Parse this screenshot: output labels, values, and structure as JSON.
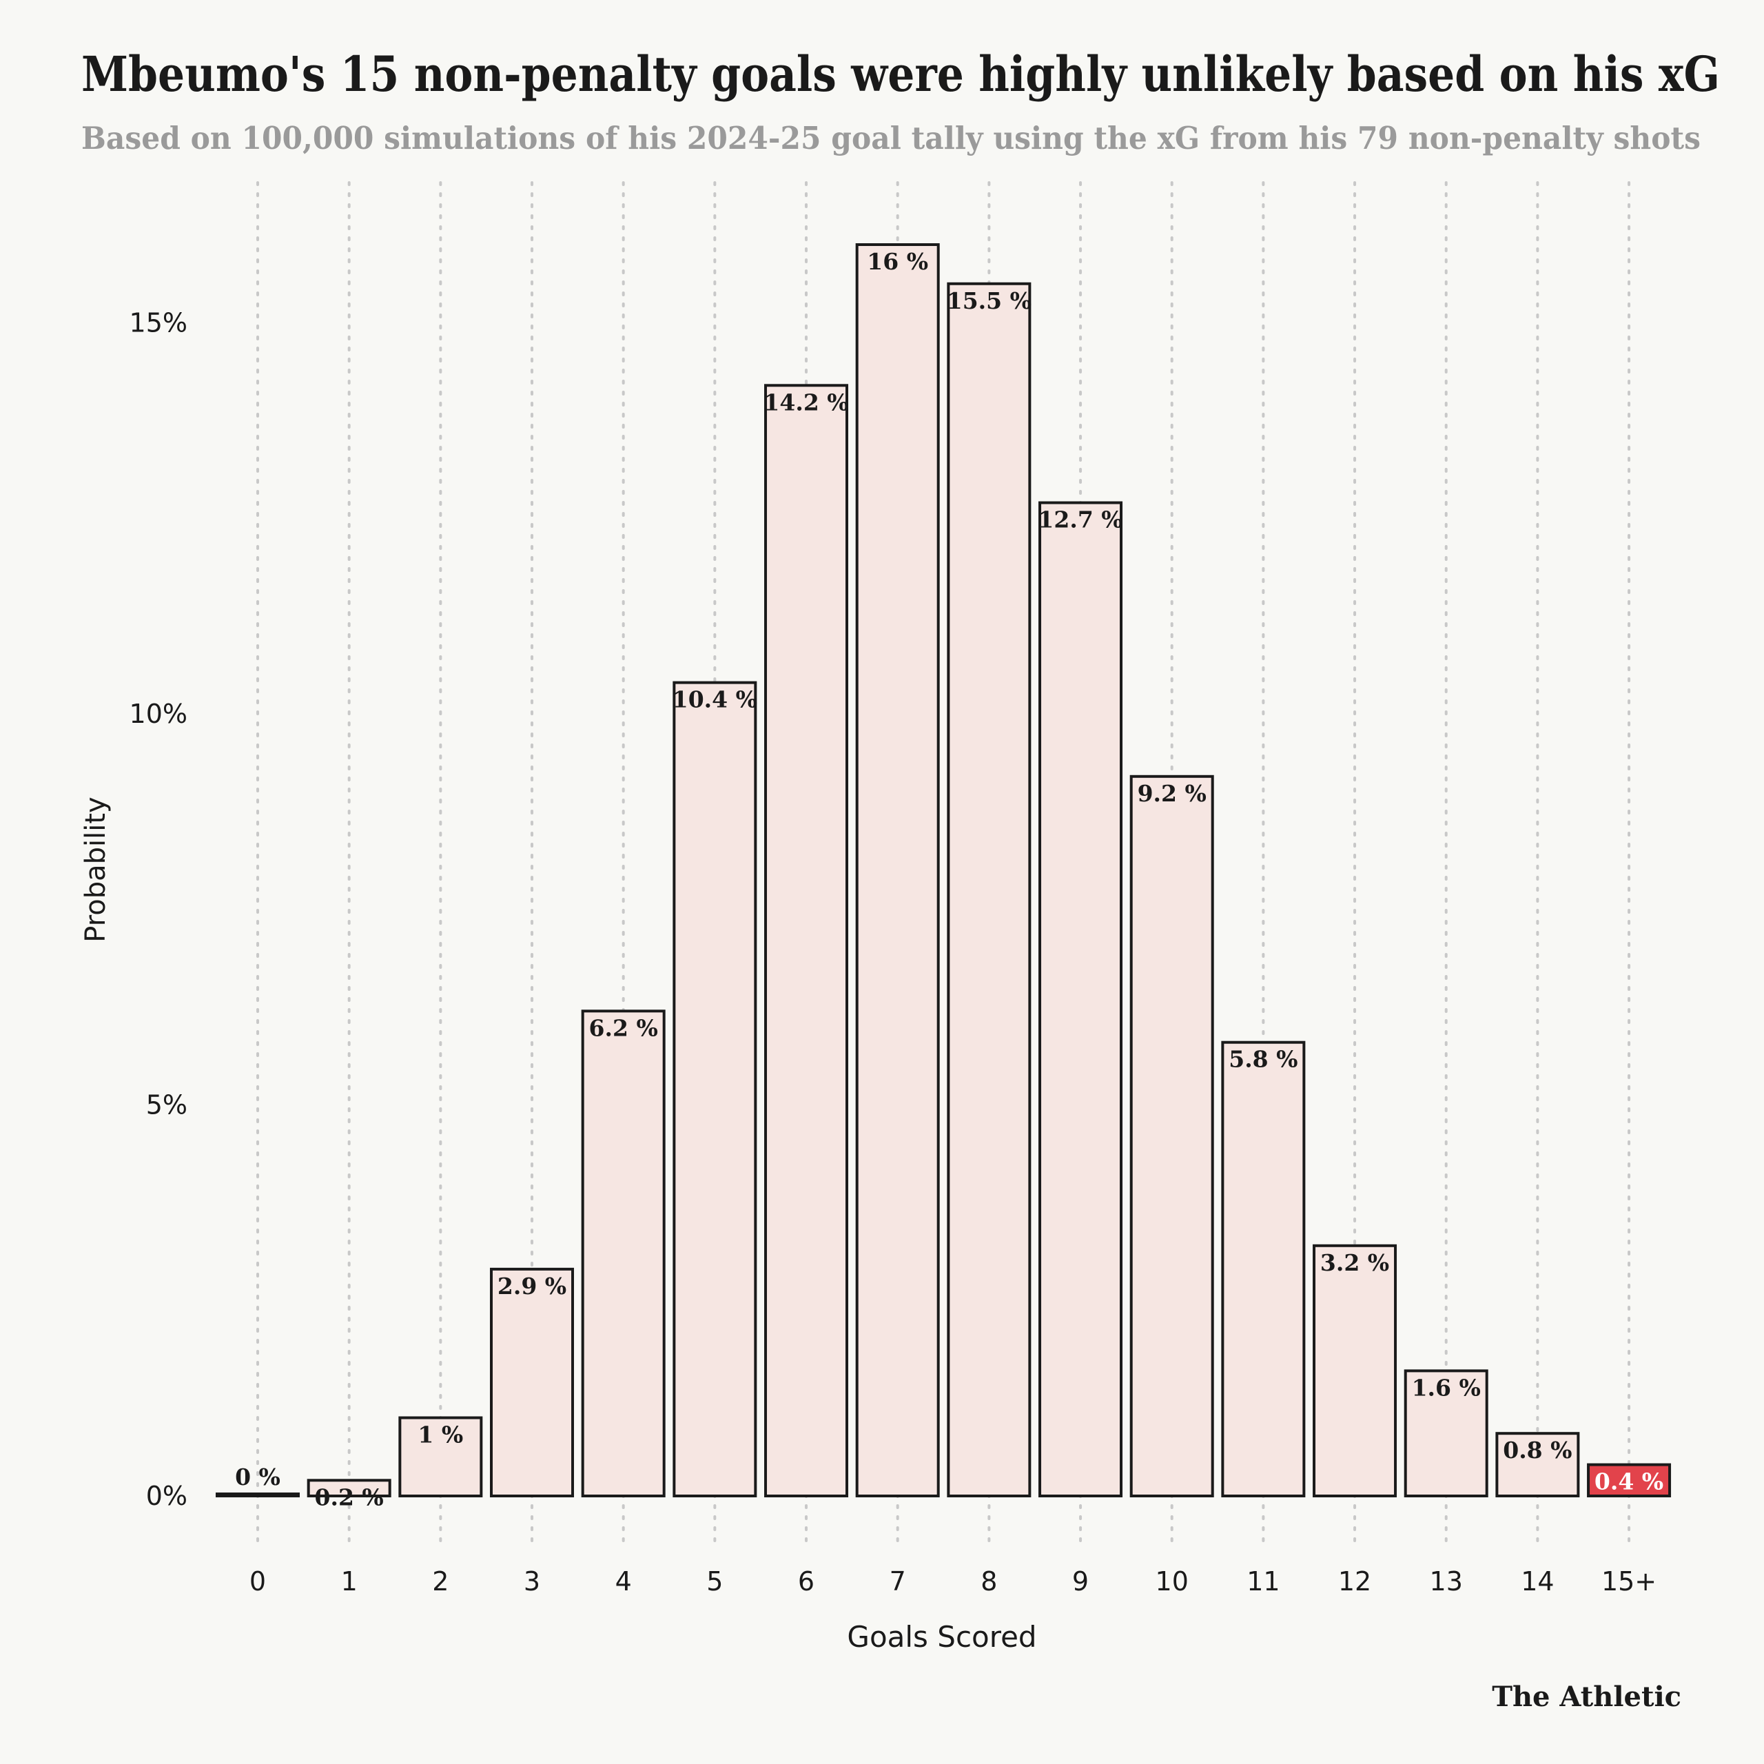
{
  "chart_data": {
    "type": "bar",
    "title": "Mbeumo's 15 non-penalty goals were highly unlikely based on his xG",
    "subtitle": "Based on 100,000 simulations of his 2024-25 goal tally using the xG from his 79 non-penalty shots",
    "xlabel": "Goals Scored",
    "ylabel": "Probability",
    "categories": [
      "0",
      "1",
      "2",
      "3",
      "4",
      "5",
      "6",
      "7",
      "8",
      "9",
      "10",
      "11",
      "12",
      "13",
      "14",
      "15+"
    ],
    "values": [
      0,
      0.2,
      1,
      2.9,
      6.2,
      10.4,
      14.2,
      16,
      15.5,
      12.7,
      9.2,
      5.8,
      3.2,
      1.6,
      0.8,
      0.4
    ],
    "value_labels": [
      "0 %",
      "0.2 %",
      "1 %",
      "2.9 %",
      "6.2 %",
      "10.4 %",
      "14.2 %",
      "16 %",
      "15.5 %",
      "12.7 %",
      "9.2 %",
      "5.8 %",
      "3.2 %",
      "1.6 %",
      "0.8 %",
      "0.4 %"
    ],
    "yticks": [
      0,
      5,
      10,
      15
    ],
    "ytick_labels": [
      "0%",
      "5%",
      "10%",
      "15%"
    ],
    "ylim": [
      0,
      16.8
    ],
    "grid": "vertical dotted",
    "highlight_index": 15,
    "colors": {
      "bar_fill": "#f6e6e2",
      "bar_stroke": "#1a1a1a",
      "highlight_fill": "#e2434b",
      "highlight_label": "#ffffff",
      "text": "#1a1a1a",
      "subtitle": "#9a9a9a",
      "grid": "#c8c8c8",
      "background": "#f8f8f5"
    }
  },
  "brand": "The Athletic"
}
